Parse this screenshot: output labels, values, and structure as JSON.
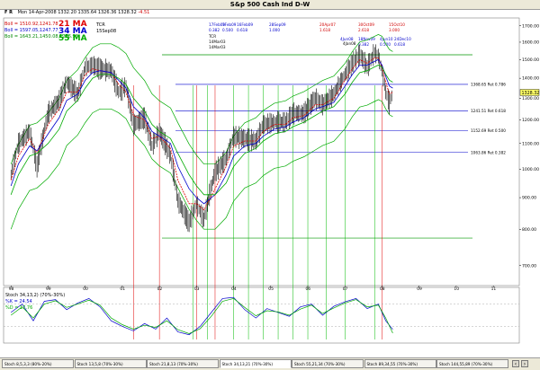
{
  "header": {
    "title": "S&p 500 Cash Ind D-W",
    "flags": "F R",
    "date": "Mon 14-Apr-2008",
    "open": "1332.20",
    "high": "1335.64",
    "low": "1326.36",
    "close": "1328.32",
    "change": "-4.51"
  },
  "study_labels": {
    "boll1": "Boll = 1510.92,1241.78",
    "boll2": "Boll = 1597.05,1247.77",
    "boll3": "Boll = 1643.21,1450.08,1256.96",
    "ma21": "21 MA",
    "ma34": "34 MA",
    "ma55": "55 MA",
    "tcr": "TCR",
    "tcr_date": "15Sep08"
  },
  "price_axis": {
    "ticks": [
      "1700.00",
      "1600.00",
      "1500.00",
      "1400.00",
      "1300.00",
      "1200.00",
      "1100.00",
      "1000.00",
      "900.00",
      "800.00",
      "700.00"
    ],
    "last_price": "1328.32"
  },
  "fib_levels": [
    {
      "value": 1368.65,
      "label": "1368.65 Ret 0.786"
    },
    {
      "value": 1241.51,
      "label": "1241.51 Ret 0.618"
    },
    {
      "value": 1152.69,
      "label": "1152.69 Ret 0.500"
    },
    {
      "value": 1063.86,
      "label": "1063.86 Ret 0.382"
    }
  ],
  "green_levels": [
    1527,
    775
  ],
  "time_projections": {
    "line1": [
      "17Feb09",
      "1Feb09",
      "16Feb09",
      "28Sep09",
      "20Apr07",
      "30Oct09",
      "15Oct10"
    ],
    "line2": [
      "0.382",
      "0.500",
      "0.618",
      "1.000",
      "1.618",
      "2.618",
      "3.000"
    ],
    "line3": [
      "4Jun08",
      "18Nov09",
      "4Jun10",
      "24Dec10"
    ],
    "line4": [
      "0.382",
      "0.500",
      "0.618"
    ],
    "tcr_text": "TCR",
    "apr03_labels": [
      "14Mar03",
      "14Mar03"
    ],
    "recent_label": "4Jan08"
  },
  "time_axis": {
    "labels": [
      "98",
      "99",
      "00",
      "01",
      "02",
      "03",
      "04",
      "05",
      "06",
      "07",
      "08",
      "09",
      "10",
      "11"
    ]
  },
  "stoch_panel": {
    "title": "Stoch 34,13,2) (70%-30%)",
    "k_label": "%K = 24.54",
    "d_label": "%D = 17.76"
  },
  "chart_data": {
    "type": "line",
    "title": "S&p 500 Cash Ind D-W",
    "x": [
      1998.0,
      1998.2,
      1998.5,
      1998.7,
      1999.0,
      1999.3,
      1999.5,
      1999.8,
      2000.0,
      2000.2,
      2000.4,
      2000.7,
      2000.9,
      2001.1,
      2001.3,
      2001.6,
      2001.8,
      2002.0,
      2002.3,
      2002.5,
      2002.8,
      2003.0,
      2003.2,
      2003.5,
      2003.8,
      2004.0,
      2004.3,
      2004.6,
      2004.8,
      2005.1,
      2005.4,
      2005.6,
      2005.9,
      2006.2,
      2006.4,
      2006.7,
      2007.0,
      2007.2,
      2007.4,
      2007.6,
      2007.8,
      2007.9,
      2008.0,
      2008.1,
      2008.2,
      2008.29
    ],
    "series": [
      {
        "name": "",
        "values": [
          980,
          1100,
          1150,
          1010,
          1230,
          1290,
          1380,
          1320,
          1460,
          1470,
          1450,
          1440,
          1330,
          1360,
          1180,
          1210,
          1090,
          1150,
          1050,
          890,
          820,
          880,
          830,
          990,
          1040,
          1130,
          1120,
          1110,
          1180,
          1190,
          1190,
          1230,
          1230,
          1300,
          1270,
          1320,
          1420,
          1480,
          1530,
          1460,
          1540,
          1520,
          1440,
          1330,
          1280,
          1328
        ]
      },
      {
        "name": "21 MA",
        "values": [
          960,
          1050,
          1120,
          1060,
          1180,
          1250,
          1330,
          1330,
          1420,
          1450,
          1440,
          1430,
          1370,
          1330,
          1220,
          1200,
          1120,
          1130,
          1080,
          960,
          880,
          880,
          860,
          930,
          1010,
          1090,
          1110,
          1110,
          1150,
          1180,
          1180,
          1210,
          1220,
          1270,
          1270,
          1300,
          1390,
          1450,
          1500,
          1480,
          1510,
          1510,
          1460,
          1380,
          1320,
          1330
        ]
      },
      {
        "name": "34 MA",
        "values": [
          940,
          1020,
          1090,
          1070,
          1140,
          1210,
          1290,
          1320,
          1390,
          1430,
          1440,
          1430,
          1390,
          1350,
          1260,
          1210,
          1150,
          1130,
          1100,
          1010,
          930,
          900,
          880,
          910,
          980,
          1050,
          1090,
          1100,
          1130,
          1160,
          1170,
          1190,
          1210,
          1250,
          1260,
          1280,
          1360,
          1420,
          1470,
          1470,
          1490,
          1500,
          1470,
          1410,
          1360,
          1350
        ]
      },
      {
        "name": "55 MA",
        "values": [
          910,
          980,
          1050,
          1060,
          1100,
          1160,
          1240,
          1290,
          1350,
          1400,
          1420,
          1420,
          1400,
          1370,
          1300,
          1240,
          1180,
          1150,
          1120,
          1060,
          980,
          940,
          910,
          910,
          950,
          1010,
          1060,
          1080,
          1110,
          1140,
          1150,
          1170,
          1190,
          1220,
          1240,
          1260,
          1320,
          1380,
          1430,
          1440,
          1460,
          1470,
          1460,
          1420,
          1390,
          1380
        ]
      }
    ],
    "xlabel": "",
    "ylabel": "",
    "ylim": [
      650,
      1750
    ],
    "xlim": [
      1997.8,
      2011.7
    ],
    "grid": false,
    "y_scale": "log",
    "stochastic": {
      "x": [
        1998.0,
        1998.3,
        1998.6,
        1998.9,
        1999.2,
        1999.5,
        1999.8,
        2000.1,
        2000.4,
        2000.7,
        2001.0,
        2001.3,
        2001.6,
        2001.9,
        2002.2,
        2002.5,
        2002.8,
        2003.1,
        2003.4,
        2003.7,
        2004.0,
        2004.3,
        2004.6,
        2004.9,
        2005.2,
        2005.5,
        2005.8,
        2006.1,
        2006.4,
        2006.7,
        2007.0,
        2007.3,
        2007.6,
        2007.9,
        2008.1,
        2008.29
      ],
      "k": [
        55,
        70,
        40,
        75,
        78,
        60,
        72,
        80,
        65,
        40,
        30,
        22,
        35,
        25,
        45,
        20,
        15,
        30,
        55,
        80,
        82,
        60,
        45,
        62,
        55,
        48,
        65,
        70,
        50,
        66,
        74,
        80,
        62,
        70,
        40,
        24.54
      ],
      "d": [
        50,
        65,
        45,
        70,
        76,
        64,
        70,
        77,
        68,
        45,
        33,
        25,
        32,
        28,
        40,
        24,
        17,
        26,
        48,
        75,
        80,
        64,
        49,
        58,
        56,
        50,
        61,
        68,
        53,
        63,
        72,
        78,
        65,
        68,
        45,
        17.76
      ],
      "ylim": [
        0,
        100
      ],
      "levels": [
        70,
        30
      ]
    }
  },
  "bottom_tabs": [
    "Stoch 8,5,3,3 (80%-20%)",
    "Stoch 13,5,8 (70%-30%)",
    "Stoch 21,8,13 (70%-30%)",
    "Stoch 34,13,21 (70%-30%)",
    "Stoch 55,21,34 (70%-30%)",
    "Stoch 89,34,55 (70%-30%)",
    "Stoch 144,55,89 (70%-30%)"
  ],
  "colors": {
    "price": "#000000",
    "ma21": "#e00000",
    "ma34": "#0000cc",
    "ma55": "#00aa00",
    "fib": "#0000cc",
    "green_line": "#009900",
    "cycle": "#e00000",
    "cycle_green": "#00bb00"
  }
}
